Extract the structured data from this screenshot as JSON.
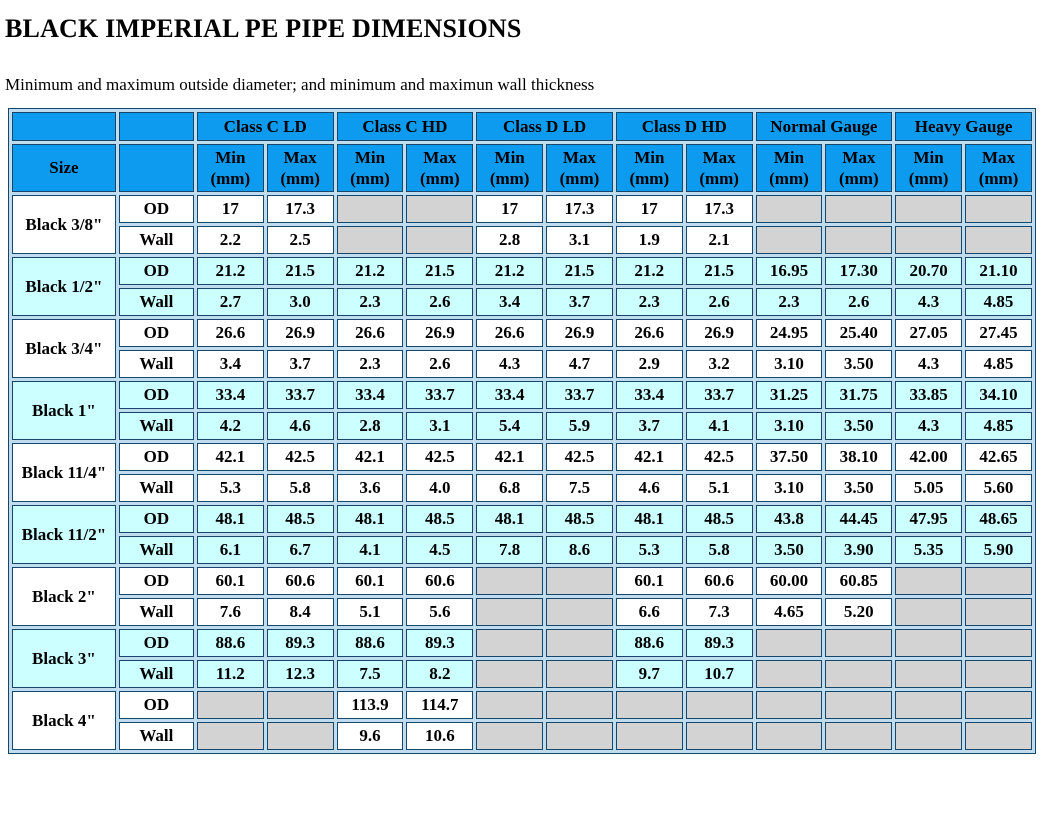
{
  "page": {
    "title": "BLACK IMPERIAL PE PIPE DIMENSIONS",
    "subtitle": "Minimum and maximum outside diameter; and minimum and maximun wall thickness"
  },
  "table": {
    "size_header": "Size",
    "min_label": "Min",
    "max_label": "Max",
    "unit": "(mm)",
    "class_headers": [
      "Class C LD",
      "Class C HD",
      "Class D LD",
      "Class D HD",
      "Normal Gauge",
      "Heavy Gauge"
    ],
    "row_labels": {
      "od": "OD",
      "wall": "Wall"
    },
    "colors": {
      "header_bg": "#0D9BF0",
      "row_alt_bg": "#CCFFFF",
      "empty_bg": "#D3D3D3",
      "grid_bg": "#BFDDEE",
      "cell_border": "#17466B"
    },
    "rows": [
      {
        "size": "Black 3/8\"",
        "od": [
          "17",
          "17.3",
          "",
          "",
          "17",
          "17.3",
          "17",
          "17.3",
          "",
          "",
          "",
          ""
        ],
        "wall": [
          "2.2",
          "2.5",
          "",
          "",
          "2.8",
          "3.1",
          "1.9",
          "2.1",
          "",
          "",
          "",
          ""
        ]
      },
      {
        "size": "Black 1/2\"",
        "od": [
          "21.2",
          "21.5",
          "21.2",
          "21.5",
          "21.2",
          "21.5",
          "21.2",
          "21.5",
          "16.95",
          "17.30",
          "20.70",
          "21.10"
        ],
        "wall": [
          "2.7",
          "3.0",
          "2.3",
          "2.6",
          "3.4",
          "3.7",
          "2.3",
          "2.6",
          "2.3",
          "2.6",
          "4.3",
          "4.85"
        ]
      },
      {
        "size": "Black 3/4\"",
        "od": [
          "26.6",
          "26.9",
          "26.6",
          "26.9",
          "26.6",
          "26.9",
          "26.6",
          "26.9",
          "24.95",
          "25.40",
          "27.05",
          "27.45"
        ],
        "wall": [
          "3.4",
          "3.7",
          "2.3",
          "2.6",
          "4.3",
          "4.7",
          "2.9",
          "3.2",
          "3.10",
          "3.50",
          "4.3",
          "4.85"
        ]
      },
      {
        "size": "Black 1\"",
        "od": [
          "33.4",
          "33.7",
          "33.4",
          "33.7",
          "33.4",
          "33.7",
          "33.4",
          "33.7",
          "31.25",
          "31.75",
          "33.85",
          "34.10"
        ],
        "wall": [
          "4.2",
          "4.6",
          "2.8",
          "3.1",
          "5.4",
          "5.9",
          "3.7",
          "4.1",
          "3.10",
          "3.50",
          "4.3",
          "4.85"
        ]
      },
      {
        "size": "Black 11/4\"",
        "od": [
          "42.1",
          "42.5",
          "42.1",
          "42.5",
          "42.1",
          "42.5",
          "42.1",
          "42.5",
          "37.50",
          "38.10",
          "42.00",
          "42.65"
        ],
        "wall": [
          "5.3",
          "5.8",
          "3.6",
          "4.0",
          "6.8",
          "7.5",
          "4.6",
          "5.1",
          "3.10",
          "3.50",
          "5.05",
          "5.60"
        ]
      },
      {
        "size": "Black 11/2\"",
        "od": [
          "48.1",
          "48.5",
          "48.1",
          "48.5",
          "48.1",
          "48.5",
          "48.1",
          "48.5",
          "43.8",
          "44.45",
          "47.95",
          "48.65"
        ],
        "wall": [
          "6.1",
          "6.7",
          "4.1",
          "4.5",
          "7.8",
          "8.6",
          "5.3",
          "5.8",
          "3.50",
          "3.90",
          "5.35",
          "5.90"
        ]
      },
      {
        "size": "Black 2\"",
        "od": [
          "60.1",
          "60.6",
          "60.1",
          "60.6",
          "",
          "",
          "60.1",
          "60.6",
          "60.00",
          "60.85",
          "",
          ""
        ],
        "wall": [
          "7.6",
          "8.4",
          "5.1",
          "5.6",
          "",
          "",
          "6.6",
          "7.3",
          "4.65",
          "5.20",
          "",
          ""
        ]
      },
      {
        "size": "Black 3\"",
        "od": [
          "88.6",
          "89.3",
          "88.6",
          "89.3",
          "",
          "",
          "88.6",
          "89.3",
          "",
          "",
          "",
          ""
        ],
        "wall": [
          "11.2",
          "12.3",
          "7.5",
          "8.2",
          "",
          "",
          "9.7",
          "10.7",
          "",
          "",
          "",
          ""
        ]
      },
      {
        "size": "Black 4\"",
        "od": [
          "",
          "",
          "113.9",
          "114.7",
          "",
          "",
          "",
          "",
          "",
          "",
          "",
          ""
        ],
        "wall": [
          "",
          "",
          "9.6",
          "10.6",
          "",
          "",
          "",
          "",
          "",
          "",
          "",
          ""
        ]
      }
    ]
  }
}
